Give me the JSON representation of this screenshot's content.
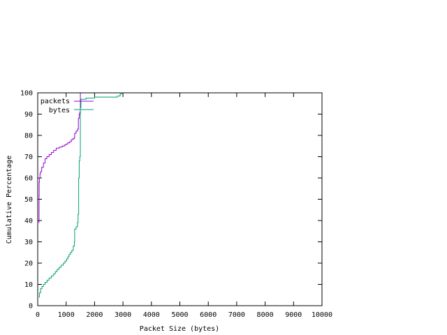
{
  "chart_data": {
    "type": "line",
    "title": "",
    "xlabel": "Packet Size (bytes)",
    "ylabel": "Cumulative Percentage",
    "xlim": [
      0,
      10000
    ],
    "ylim": [
      0,
      100
    ],
    "x_ticks": [
      0,
      1000,
      2000,
      3000,
      4000,
      5000,
      6000,
      7000,
      8000,
      9000,
      10000
    ],
    "y_ticks": [
      0,
      10,
      20,
      30,
      40,
      50,
      60,
      70,
      80,
      90,
      100
    ],
    "grid": false,
    "legend_position": "top-left",
    "step": true,
    "series": [
      {
        "name": "packets",
        "color": "#9400d3",
        "points": [
          [
            40,
            39
          ],
          [
            44,
            40
          ],
          [
            48,
            52
          ],
          [
            52,
            58
          ],
          [
            60,
            60
          ],
          [
            80,
            62
          ],
          [
            100,
            63
          ],
          [
            140,
            65
          ],
          [
            200,
            67
          ],
          [
            260,
            69
          ],
          [
            320,
            70
          ],
          [
            400,
            71
          ],
          [
            480,
            72
          ],
          [
            560,
            73
          ],
          [
            650,
            74
          ],
          [
            760,
            74.5
          ],
          [
            860,
            75
          ],
          [
            940,
            75.5
          ],
          [
            1000,
            76
          ],
          [
            1060,
            76.5
          ],
          [
            1120,
            77
          ],
          [
            1180,
            78
          ],
          [
            1240,
            78.5
          ],
          [
            1290,
            79
          ],
          [
            1300,
            81
          ],
          [
            1350,
            82
          ],
          [
            1400,
            83
          ],
          [
            1430,
            88
          ],
          [
            1460,
            90
          ],
          [
            1480,
            91
          ],
          [
            1500,
            99
          ],
          [
            1500,
            100
          ],
          [
            3000,
            100
          ]
        ]
      },
      {
        "name": "bytes",
        "color": "#009e73",
        "points": [
          [
            40,
            4
          ],
          [
            60,
            6
          ],
          [
            100,
            8
          ],
          [
            150,
            9
          ],
          [
            200,
            10
          ],
          [
            260,
            11
          ],
          [
            330,
            12
          ],
          [
            400,
            13
          ],
          [
            480,
            14
          ],
          [
            560,
            15
          ],
          [
            620,
            16
          ],
          [
            680,
            17
          ],
          [
            750,
            18
          ],
          [
            820,
            19
          ],
          [
            900,
            20
          ],
          [
            960,
            21
          ],
          [
            1020,
            22
          ],
          [
            1060,
            23
          ],
          [
            1100,
            24
          ],
          [
            1150,
            25
          ],
          [
            1200,
            26
          ],
          [
            1250,
            28
          ],
          [
            1290,
            30
          ],
          [
            1300,
            36
          ],
          [
            1350,
            37
          ],
          [
            1400,
            39
          ],
          [
            1420,
            43
          ],
          [
            1440,
            60
          ],
          [
            1460,
            68
          ],
          [
            1480,
            70
          ],
          [
            1500,
            74
          ],
          [
            1500,
            93
          ],
          [
            1520,
            97
          ],
          [
            1700,
            97.5
          ],
          [
            2000,
            98
          ],
          [
            2800,
            98.5
          ],
          [
            2900,
            99.5
          ],
          [
            3000,
            100
          ]
        ]
      }
    ]
  }
}
